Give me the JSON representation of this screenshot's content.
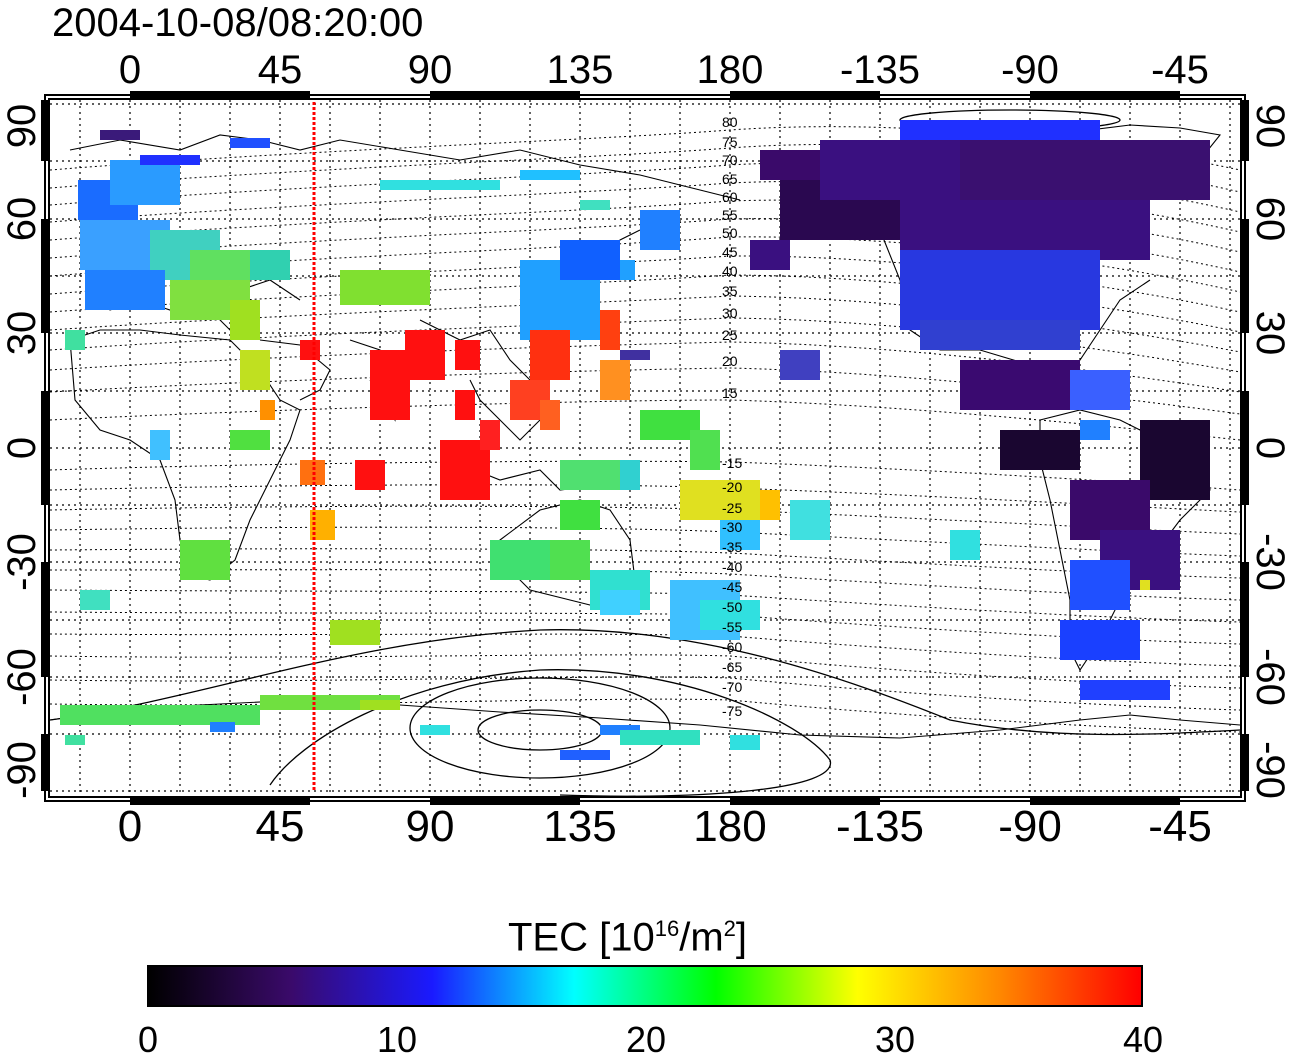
{
  "title": "2004-10-08/08:20:00",
  "lon_ticks": [
    "0",
    "45",
    "90",
    "135",
    "180",
    "-135",
    "-90",
    "-45"
  ],
  "lat_ticks": [
    "90",
    "60",
    "30",
    "0",
    "-30",
    "-60",
    "-90"
  ],
  "colorbar": {
    "label_main": "TEC  [10",
    "label_sup1": "16",
    "label_mid": "/m",
    "label_sup2": "2",
    "label_end": "]",
    "ticks": [
      "0",
      "10",
      "20",
      "30",
      "40"
    ],
    "colors": [
      "#000000",
      "#3a0a6a",
      "#1a1aff",
      "#00ffff",
      "#00ff00",
      "#ffff00",
      "#ff8800",
      "#ff0000"
    ]
  },
  "contour_labels_north": [
    "80",
    "75",
    "70",
    "65",
    "60",
    "55",
    "50",
    "45",
    "40",
    "35",
    "30",
    "25",
    "20",
    "15"
  ],
  "contour_labels_south": [
    "-15",
    "-20",
    "-25",
    "-30",
    "-35",
    "-40",
    "-45",
    "-50",
    "-55",
    "-60",
    "-65",
    "-70",
    "-75"
  ],
  "meridian_marker_lon": 55
}
